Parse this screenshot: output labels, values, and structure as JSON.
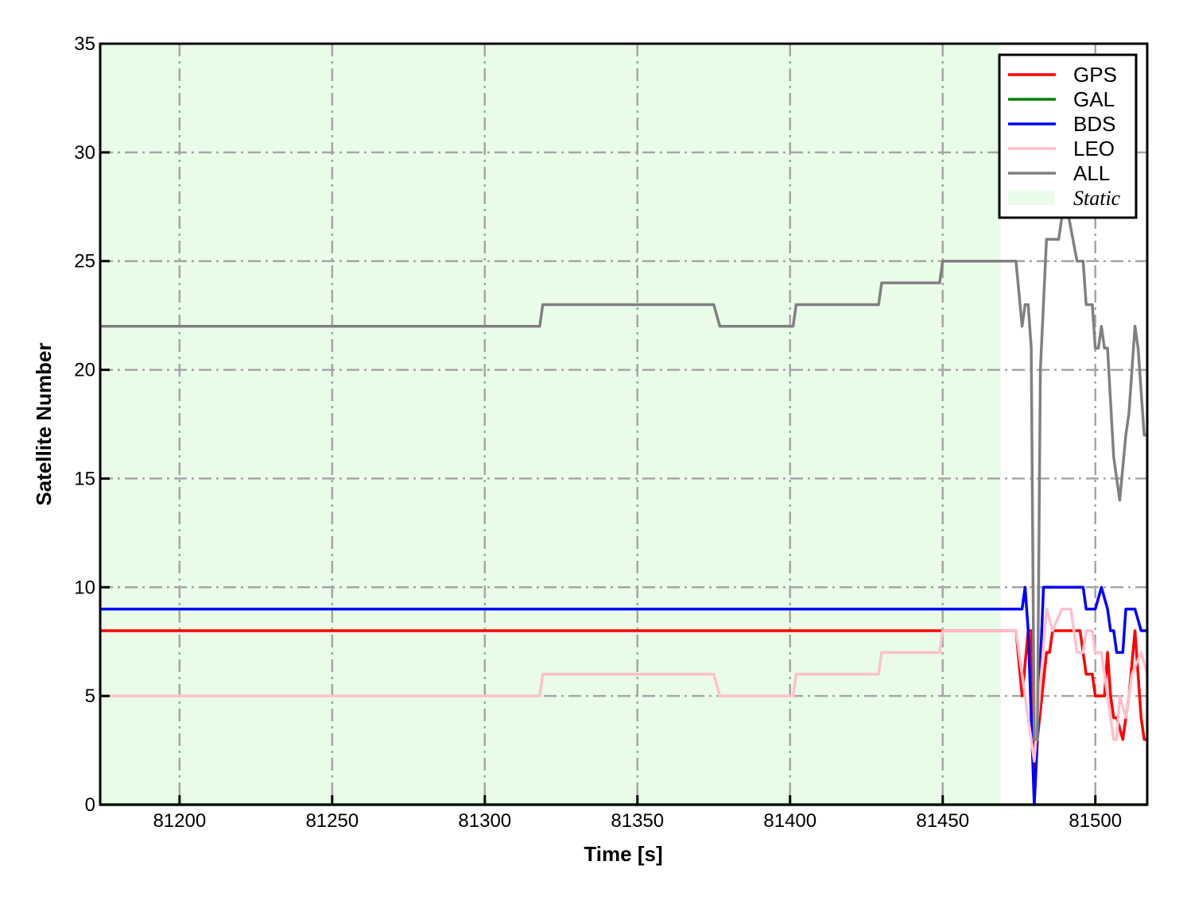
{
  "chart_data": {
    "type": "line",
    "title": "",
    "xlabel": "Time [s]",
    "ylabel": "Satellite Number",
    "xlim": [
      81174,
      81517
    ],
    "ylim": [
      0,
      35
    ],
    "xticks": [
      81200,
      81250,
      81300,
      81350,
      81400,
      81450,
      81500
    ],
    "yticks": [
      0,
      5,
      10,
      15,
      20,
      25,
      30,
      35
    ],
    "grid": true,
    "legend_position": "top-right",
    "shaded_regions": [
      {
        "name": "Static",
        "x": [
          81174,
          81469
        ],
        "color": "#e8fce8"
      }
    ],
    "series": [
      {
        "name": "GPS",
        "color": "#ff0000",
        "points": [
          [
            81174,
            8
          ],
          [
            81474,
            8
          ],
          [
            81476,
            5
          ],
          [
            81478,
            8
          ],
          [
            81479,
            8
          ],
          [
            81480,
            0
          ],
          [
            81481,
            3
          ],
          [
            81484,
            7
          ],
          [
            81485,
            7
          ],
          [
            81486,
            8
          ],
          [
            81495,
            8
          ],
          [
            81497,
            6
          ],
          [
            81499,
            6
          ],
          [
            81500,
            5
          ],
          [
            81503,
            5
          ],
          [
            81504,
            7
          ],
          [
            81505,
            5
          ],
          [
            81506,
            4
          ],
          [
            81507,
            4
          ],
          [
            81509,
            3
          ],
          [
            81511,
            5
          ],
          [
            81513,
            8
          ],
          [
            81515,
            4
          ],
          [
            81516,
            3
          ],
          [
            81517,
            3
          ]
        ]
      },
      {
        "name": "GAL",
        "color": "#008000",
        "points": [
          [
            81174,
            0
          ],
          [
            81517,
            0
          ]
        ]
      },
      {
        "name": "BDS",
        "color": "#0000ff",
        "points": [
          [
            81174,
            9
          ],
          [
            81476,
            9
          ],
          [
            81477,
            10
          ],
          [
            81478,
            8
          ],
          [
            81480,
            0
          ],
          [
            81481,
            3
          ],
          [
            81483,
            10
          ],
          [
            81496,
            10
          ],
          [
            81497,
            9
          ],
          [
            81500,
            9
          ],
          [
            81502,
            10
          ],
          [
            81504,
            9
          ],
          [
            81505,
            8
          ],
          [
            81506,
            8
          ],
          [
            81507,
            7
          ],
          [
            81509,
            7
          ],
          [
            81510,
            9
          ],
          [
            81513,
            9
          ],
          [
            81515,
            8
          ],
          [
            81517,
            8
          ]
        ]
      },
      {
        "name": "LEO",
        "color": "#ffc0cb",
        "points": [
          [
            81174,
            5
          ],
          [
            81318,
            5
          ],
          [
            81319,
            6
          ],
          [
            81375,
            6
          ],
          [
            81377,
            5
          ],
          [
            81401,
            5
          ],
          [
            81402,
            6
          ],
          [
            81429,
            6
          ],
          [
            81430,
            7
          ],
          [
            81449,
            7
          ],
          [
            81450,
            8
          ],
          [
            81474,
            8
          ],
          [
            81480,
            2
          ],
          [
            81484,
            9
          ],
          [
            81486,
            8
          ],
          [
            81489,
            9
          ],
          [
            81492,
            9
          ],
          [
            81493,
            8
          ],
          [
            81494,
            7
          ],
          [
            81496,
            7
          ],
          [
            81497,
            8
          ],
          [
            81499,
            8
          ],
          [
            81500,
            7
          ],
          [
            81502,
            7
          ],
          [
            81504,
            5
          ],
          [
            81506,
            3
          ],
          [
            81507,
            3
          ],
          [
            81508,
            5
          ],
          [
            81510,
            4
          ],
          [
            81512,
            6
          ],
          [
            81515,
            7
          ],
          [
            81517,
            6
          ]
        ]
      },
      {
        "name": "ALL",
        "color": "#808080",
        "points": [
          [
            81174,
            22
          ],
          [
            81318,
            22
          ],
          [
            81319,
            23
          ],
          [
            81375,
            23
          ],
          [
            81377,
            22
          ],
          [
            81401,
            22
          ],
          [
            81402,
            23
          ],
          [
            81429,
            23
          ],
          [
            81430,
            24
          ],
          [
            81449,
            24
          ],
          [
            81450,
            25
          ],
          [
            81474,
            25
          ],
          [
            81476,
            22
          ],
          [
            81477,
            23
          ],
          [
            81478,
            23
          ],
          [
            81479,
            21
          ],
          [
            81480,
            3
          ],
          [
            81481,
            3
          ],
          [
            81482,
            20
          ],
          [
            81484,
            26
          ],
          [
            81488,
            26
          ],
          [
            81489,
            27
          ],
          [
            81490,
            28
          ],
          [
            81494,
            25
          ],
          [
            81496,
            25
          ],
          [
            81497,
            23
          ],
          [
            81499,
            23
          ],
          [
            81500,
            21
          ],
          [
            81501,
            21
          ],
          [
            81502,
            22
          ],
          [
            81503,
            21
          ],
          [
            81504,
            21
          ],
          [
            81506,
            16
          ],
          [
            81508,
            14
          ],
          [
            81510,
            17
          ],
          [
            81511,
            18
          ],
          [
            81513,
            22
          ],
          [
            81514,
            21
          ],
          [
            81516,
            17
          ],
          [
            81517,
            17
          ]
        ]
      }
    ],
    "legend": [
      "GPS",
      "GAL",
      "BDS",
      "LEO",
      "ALL",
      "Static"
    ]
  }
}
